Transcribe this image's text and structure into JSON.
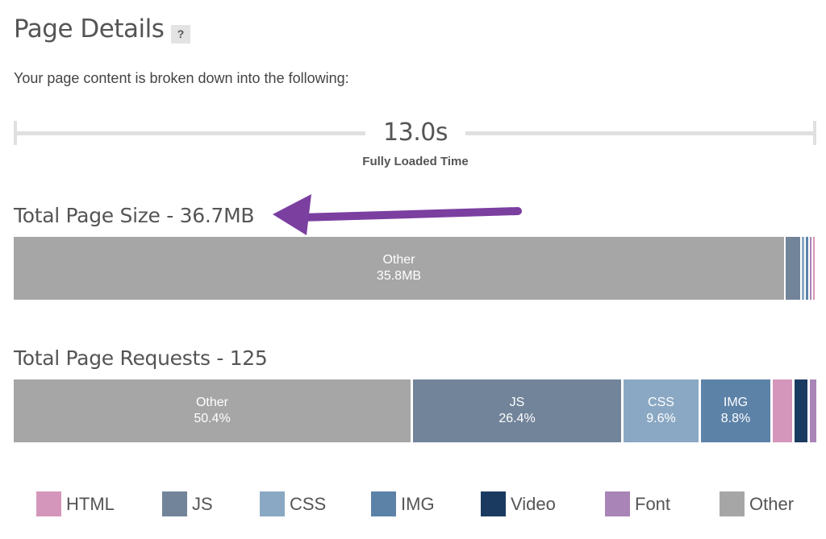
{
  "header": {
    "title": "Page Details",
    "help_label": "?",
    "subtitle": "Your page content is broken down into the following:"
  },
  "timeline": {
    "value": "13.0s",
    "label": "Fully Loaded Time"
  },
  "page_size": {
    "heading": "Total Page Size - 36.7MB",
    "segments": [
      {
        "type": "Other",
        "name": "Other",
        "value": "35.8MB",
        "color": "#a6a6a6"
      },
      {
        "type": "JS",
        "color": "#71849a"
      },
      {
        "type": "CSS",
        "color": "#8aa8c3"
      },
      {
        "type": "IMG",
        "color": "#5c82a8"
      },
      {
        "type": "Font",
        "color": "#a984b6"
      },
      {
        "type": "HTML",
        "color": "#d596bb"
      }
    ]
  },
  "page_requests": {
    "heading": "Total Page Requests - 125",
    "segments": [
      {
        "type": "Other",
        "name": "Other",
        "value": "50.4%",
        "color": "#a6a6a6"
      },
      {
        "type": "JS",
        "name": "JS",
        "value": "26.4%",
        "color": "#71849a"
      },
      {
        "type": "CSS",
        "name": "CSS",
        "value": "9.6%",
        "color": "#8aa8c3"
      },
      {
        "type": "IMG",
        "name": "IMG",
        "value": "8.8%",
        "color": "#5c82a8"
      },
      {
        "type": "HTML",
        "color": "#d596bb"
      },
      {
        "type": "Video",
        "color": "#1b3a60"
      },
      {
        "type": "Font",
        "color": "#a984b6"
      }
    ]
  },
  "legend": [
    {
      "label": "HTML",
      "color": "#d596bb"
    },
    {
      "label": "JS",
      "color": "#71849a"
    },
    {
      "label": "CSS",
      "color": "#8aa8c3"
    },
    {
      "label": "IMG",
      "color": "#5c82a8"
    },
    {
      "label": "Video",
      "color": "#1b3a60"
    },
    {
      "label": "Font",
      "color": "#a984b6"
    },
    {
      "label": "Other",
      "color": "#a6a6a6"
    }
  ],
  "annotation": {
    "arrow_color": "#7b3fa0",
    "icon": "arrow-left-icon"
  }
}
